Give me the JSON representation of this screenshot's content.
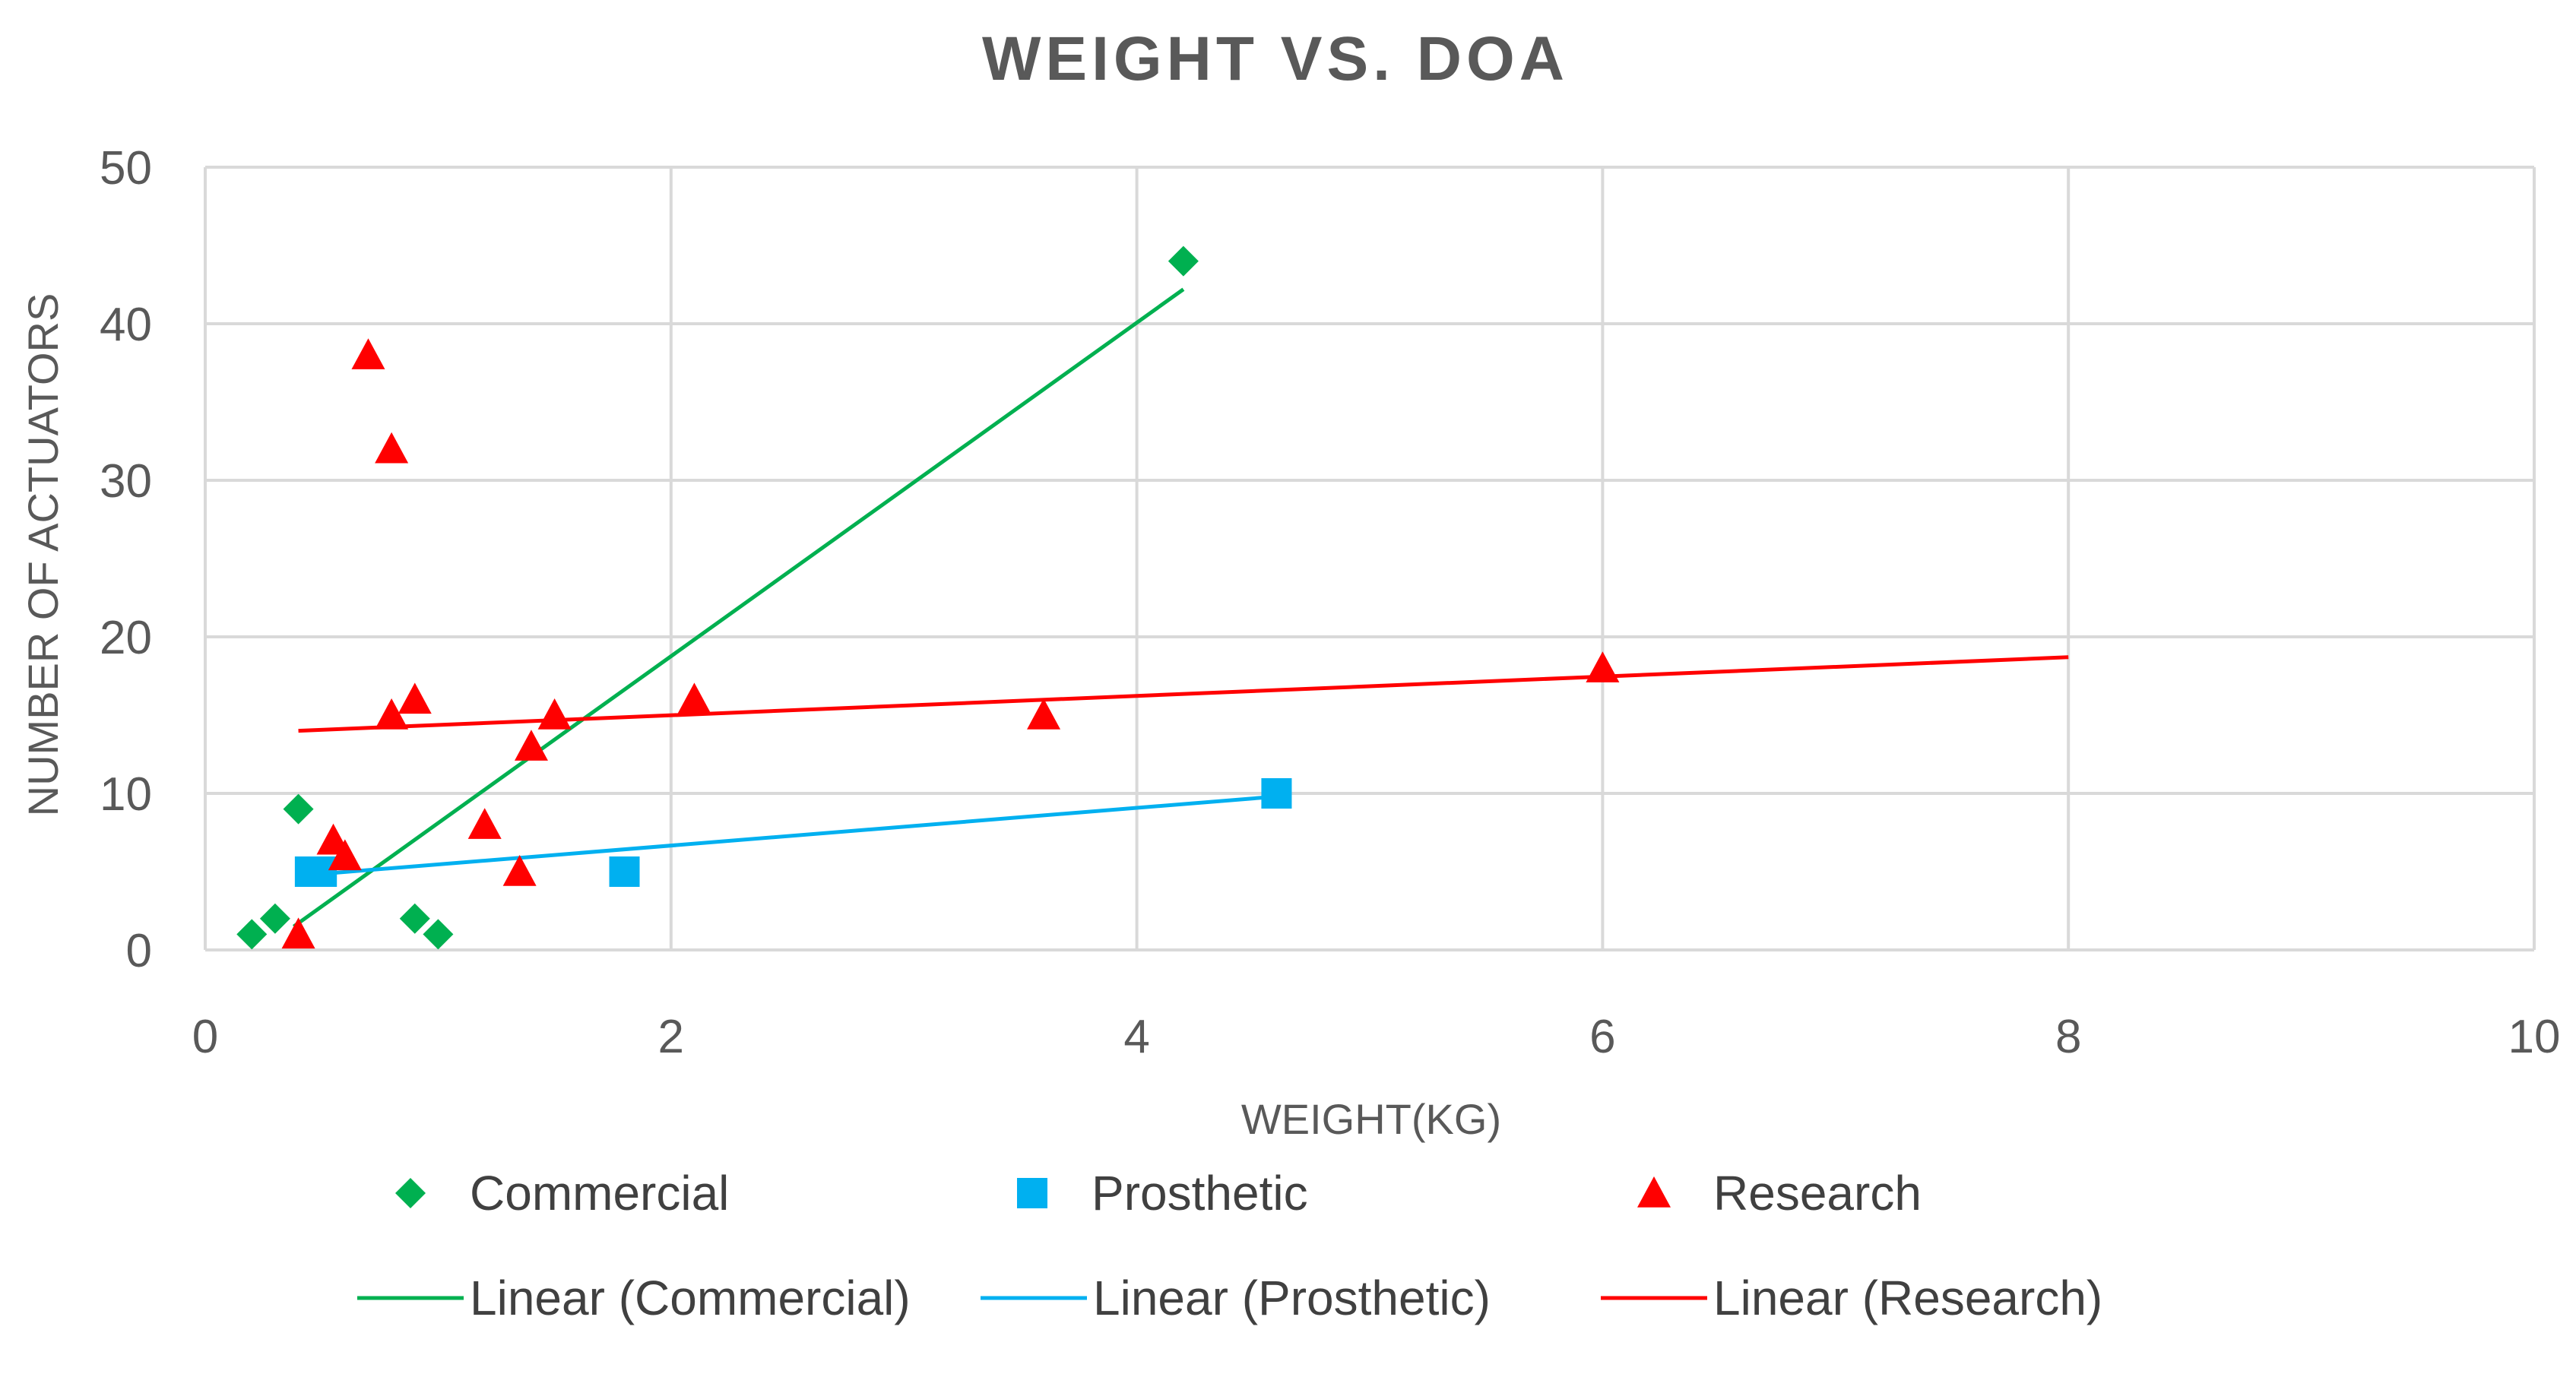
{
  "chart_data": {
    "type": "scatter",
    "title": "WEIGHT VS. DOA",
    "xlabel": "WEIGHT(KG)",
    "ylabel": "NUMBER OF ACTUATORS",
    "xlim": [
      0,
      10
    ],
    "ylim": [
      0,
      50
    ],
    "xticks": [
      0,
      2,
      4,
      6,
      8,
      10
    ],
    "yticks": [
      0,
      10,
      20,
      30,
      40,
      50
    ],
    "grid": true,
    "legend_position": "bottom",
    "series": [
      {
        "name": "Commercial",
        "marker": "diamond",
        "color": "#00B050",
        "points": [
          [
            0.2,
            1
          ],
          [
            0.3,
            2
          ],
          [
            0.4,
            9
          ],
          [
            0.9,
            2
          ],
          [
            1.0,
            1
          ],
          [
            4.2,
            44
          ]
        ]
      },
      {
        "name": "Prosthetic",
        "marker": "square",
        "color": "#00B0F0",
        "points": [
          [
            0.45,
            5
          ],
          [
            0.5,
            5
          ],
          [
            1.8,
            5
          ],
          [
            4.6,
            10
          ]
        ]
      },
      {
        "name": "Research",
        "marker": "triangle",
        "color": "#FF0000",
        "points": [
          [
            0.4,
            1
          ],
          [
            0.55,
            7
          ],
          [
            0.6,
            6
          ],
          [
            0.7,
            38
          ],
          [
            0.8,
            32
          ],
          [
            0.8,
            15
          ],
          [
            0.9,
            16
          ],
          [
            1.2,
            8
          ],
          [
            1.35,
            5
          ],
          [
            1.4,
            13
          ],
          [
            1.5,
            15
          ],
          [
            2.1,
            16
          ],
          [
            3.6,
            15
          ],
          [
            6.0,
            18
          ]
        ]
      }
    ],
    "trendlines": [
      {
        "name": "Linear (Commercial)",
        "color": "#00B050",
        "from": [
          0.38,
          1.5
        ],
        "to": [
          4.2,
          42.2
        ]
      },
      {
        "name": "Linear (Prosthetic)",
        "color": "#00B0F0",
        "from": [
          0.45,
          4.8
        ],
        "to": [
          4.6,
          9.8
        ]
      },
      {
        "name": "Linear (Research)",
        "color": "#FF0000",
        "from": [
          0.4,
          14.0
        ],
        "to": [
          8.0,
          18.7
        ]
      }
    ]
  }
}
